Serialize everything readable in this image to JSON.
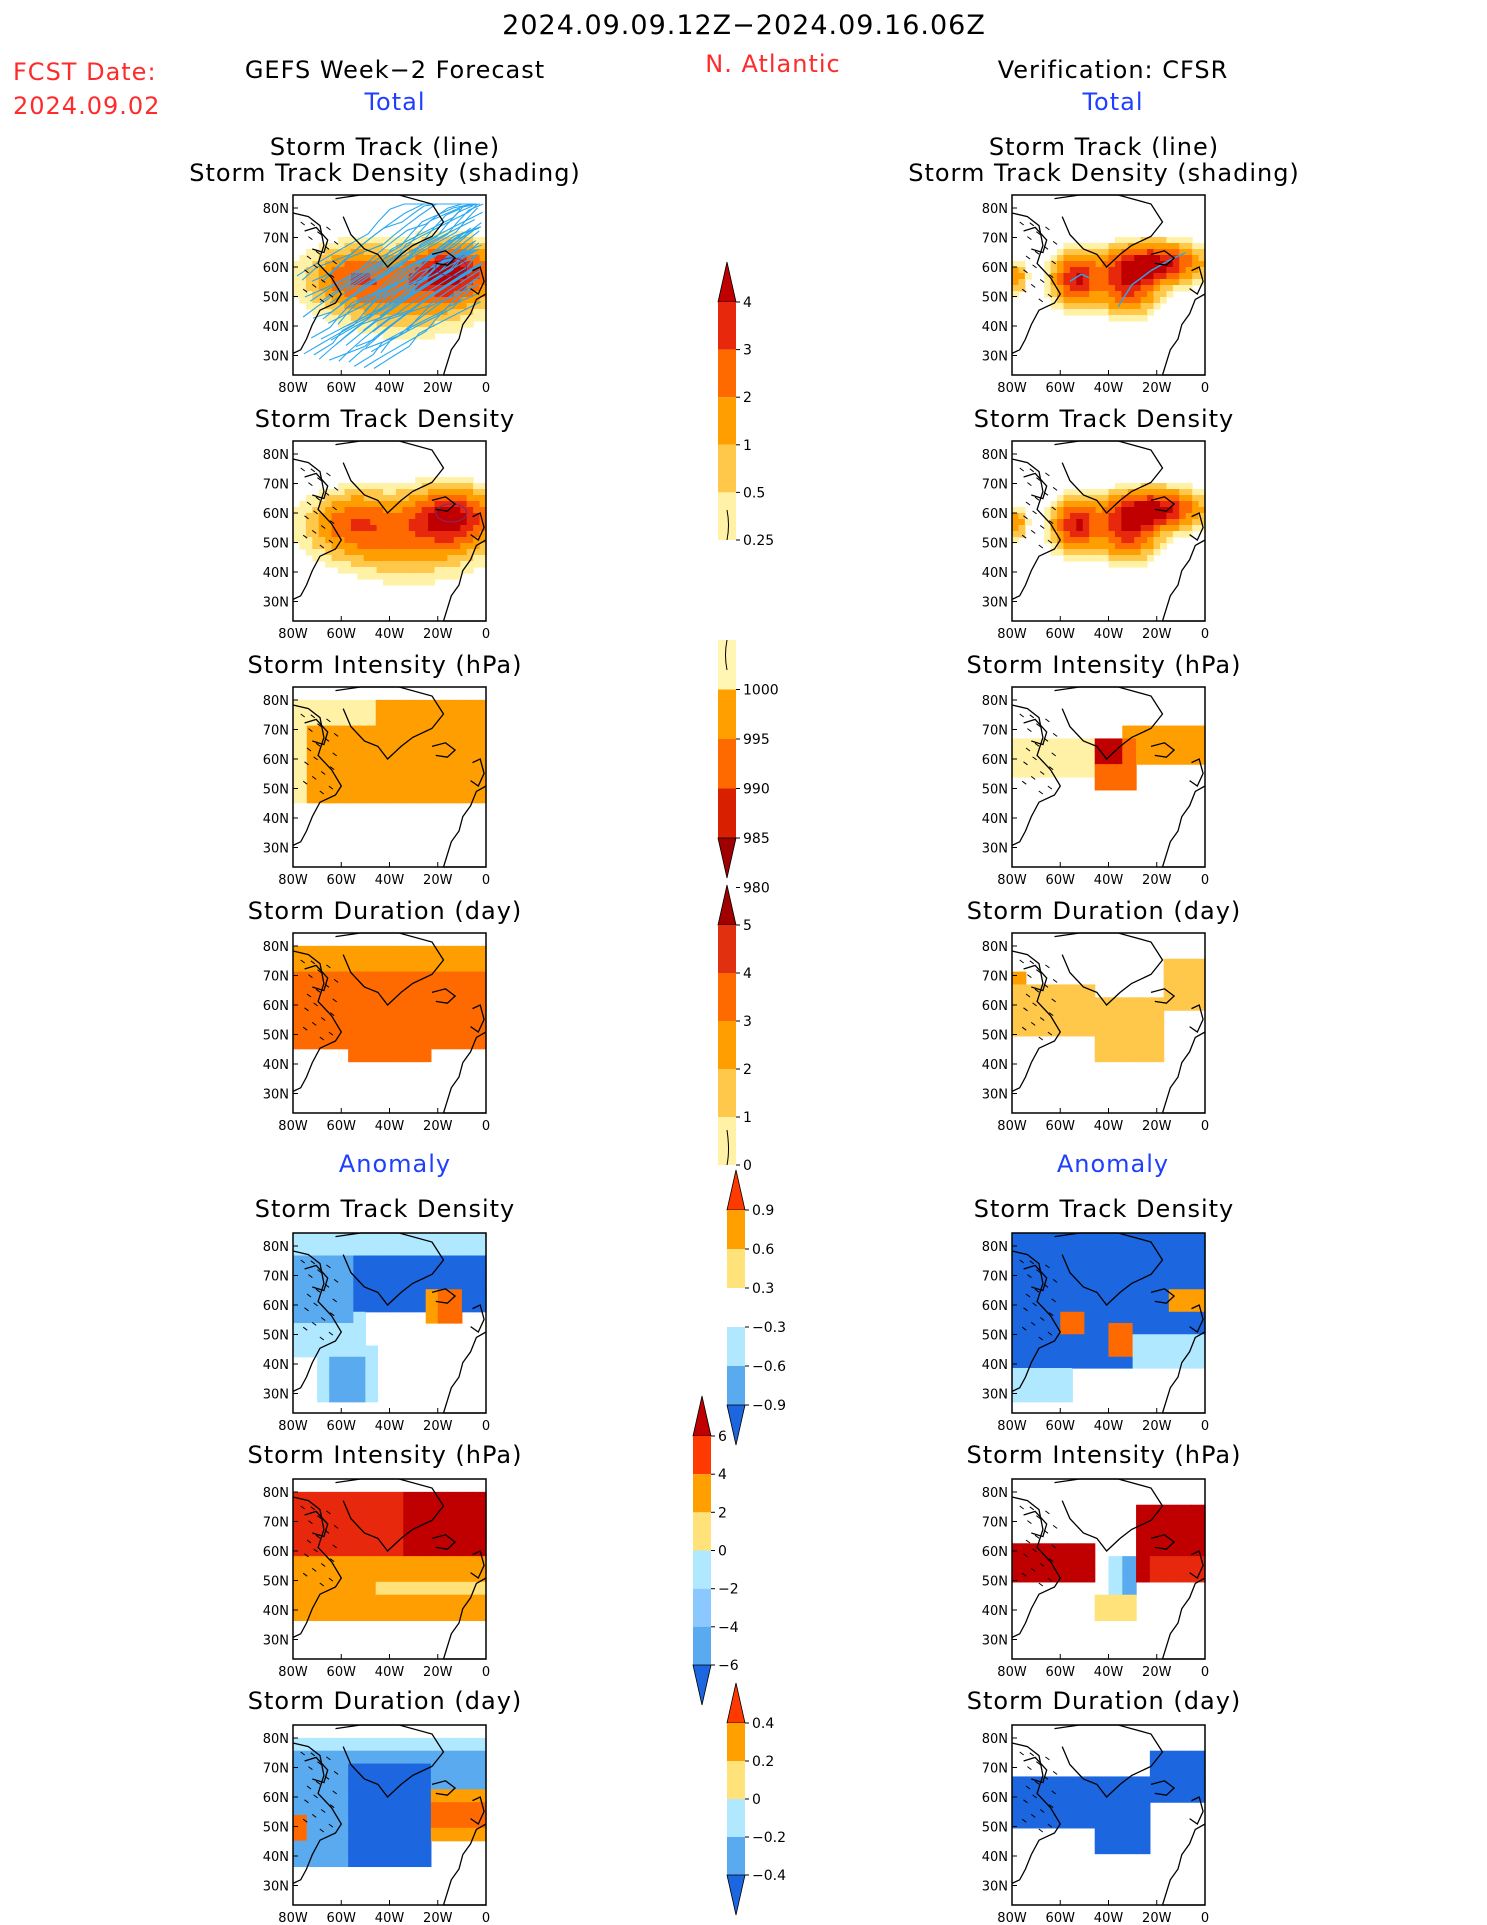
{
  "header": {
    "period": "2024.09.09.12Z−2024.09.16.06Z",
    "fcst_label": "FCST Date:",
    "fcst_date": "2024.09.02",
    "left_title": "GEFS Week−2 Forecast",
    "region": "N. Atlantic",
    "right_title": "Verification: CFSR",
    "total_label": "Total",
    "anomaly_label": "Anomaly"
  },
  "panel_titles": {
    "track_line": "Storm Track (line)",
    "track_density_shading": "Storm Track Density (shading)",
    "track_density": "Storm Track Density",
    "intensity": "Storm Intensity (hPa)",
    "duration": "Storm Duration (day)"
  },
  "axes": {
    "lat_labels": [
      "80N",
      "70N",
      "60N",
      "50N",
      "40N",
      "30N"
    ],
    "lon_labels": [
      "80W",
      "60W",
      "40W",
      "20W",
      "0"
    ]
  },
  "colorbars": {
    "density": {
      "labels": [
        "4",
        "3",
        "2",
        "1",
        "0.5",
        "0.25"
      ],
      "colors": [
        "#c00000",
        "#e8280c",
        "#ff6a00",
        "#ff9e00",
        "#ffc84a",
        "#fff2a6"
      ]
    },
    "intensity": {
      "labels": [
        "1000",
        "995",
        "990",
        "985",
        "980"
      ],
      "colors": [
        "#fff6b4",
        "#ffa000",
        "#ff6a00",
        "#d82000",
        "#a00000"
      ]
    },
    "duration": {
      "labels": [
        "5",
        "4",
        "3",
        "2",
        "1",
        "0"
      ],
      "colors": [
        "#a00000",
        "#e03010",
        "#ff6a00",
        "#ff9e00",
        "#ffc84a",
        "#fff2a6"
      ]
    },
    "density_anom": {
      "labels": [
        "0.9",
        "0.6",
        "0.3",
        "−0.3",
        "−0.6",
        "−0.9"
      ],
      "colors": [
        "#ff3a00",
        "#ffa000",
        "#ffe27a",
        "#ffffff",
        "#b0e8ff",
        "#5aaaf0",
        "#1c66e0"
      ]
    },
    "intensity_anom": {
      "labels": [
        "6",
        "4",
        "2",
        "0",
        "−2",
        "−4",
        "−6"
      ],
      "colors": [
        "#c00000",
        "#ff3a00",
        "#ffa000",
        "#ffe27a",
        "#b0e8ff",
        "#8ac8ff",
        "#5aaaf0",
        "#1c66e0"
      ]
    },
    "duration_anom": {
      "labels": [
        "0.4",
        "0.2",
        "0",
        "−0.2",
        "−0.4"
      ],
      "colors": [
        "#ff3a00",
        "#ffa000",
        "#ffe27a",
        "#b0e8ff",
        "#5aaaf0",
        "#1c66e0"
      ]
    }
  }
}
